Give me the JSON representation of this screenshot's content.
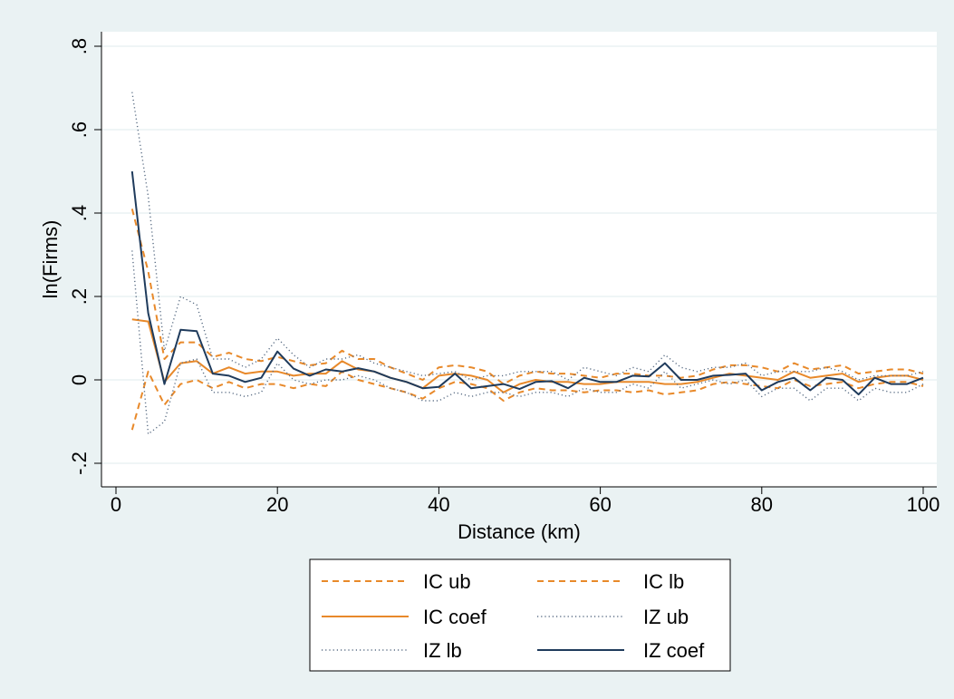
{
  "chart_data": {
    "type": "line",
    "xlabel": "Distance (km)",
    "ylabel": "ln(Firms)",
    "xlim": [
      0,
      100
    ],
    "ylim": [
      -0.2,
      0.8
    ],
    "xticks": [
      0,
      20,
      40,
      60,
      80,
      100
    ],
    "xtick_labels": [
      "0",
      "20",
      "40",
      "60",
      "80",
      "100"
    ],
    "yticks": [
      -0.2,
      0,
      0.2,
      0.4,
      0.6,
      0.8
    ],
    "ytick_labels": [
      "-.2",
      "0",
      ".2",
      ".4",
      ".6",
      ".8"
    ],
    "grid": "horizontal",
    "legend_position": "bottom",
    "x": [
      2,
      4,
      6,
      8,
      10,
      12,
      14,
      16,
      18,
      20,
      22,
      24,
      26,
      28,
      30,
      32,
      34,
      36,
      38,
      40,
      42,
      44,
      46,
      48,
      50,
      52,
      54,
      56,
      58,
      60,
      62,
      64,
      66,
      68,
      70,
      72,
      74,
      76,
      78,
      80,
      82,
      84,
      86,
      88,
      90,
      92,
      94,
      96,
      98,
      100
    ],
    "series": [
      {
        "name": "IC ub",
        "color": "#e8892a",
        "style": "dashed",
        "values": [
          0.41,
          0.26,
          0.05,
          0.09,
          0.09,
          0.055,
          0.065,
          0.05,
          0.045,
          0.055,
          0.045,
          0.035,
          0.04,
          0.07,
          0.05,
          0.05,
          0.03,
          0.015,
          0.0,
          0.03,
          0.035,
          0.03,
          0.02,
          -0.01,
          0.01,
          0.02,
          0.015,
          0.015,
          0.01,
          0.005,
          0.015,
          0.015,
          0.01,
          0.01,
          0.005,
          0.01,
          0.025,
          0.035,
          0.035,
          0.03,
          0.02,
          0.04,
          0.025,
          0.03,
          0.035,
          0.015,
          0.02,
          0.025,
          0.025,
          0.015
        ]
      },
      {
        "name": "IC lb",
        "color": "#e8892a",
        "style": "dashed",
        "values": [
          -0.12,
          0.02,
          -0.06,
          -0.01,
          0.0,
          -0.02,
          -0.005,
          -0.02,
          -0.01,
          -0.01,
          -0.02,
          -0.01,
          -0.015,
          0.02,
          0.0,
          -0.01,
          -0.02,
          -0.03,
          -0.045,
          -0.02,
          -0.005,
          -0.01,
          -0.02,
          -0.05,
          -0.03,
          -0.02,
          -0.025,
          -0.025,
          -0.03,
          -0.025,
          -0.025,
          -0.03,
          -0.025,
          -0.035,
          -0.03,
          -0.025,
          -0.01,
          -0.005,
          -0.01,
          -0.015,
          -0.02,
          0.0,
          -0.015,
          -0.01,
          -0.005,
          -0.02,
          -0.01,
          -0.005,
          -0.005,
          -0.015
        ]
      },
      {
        "name": "IC coef",
        "color": "#e8892a",
        "style": "solid",
        "values": [
          0.145,
          0.14,
          -0.005,
          0.04,
          0.045,
          0.015,
          0.03,
          0.015,
          0.02,
          0.02,
          0.01,
          0.015,
          0.015,
          0.045,
          0.025,
          0.02,
          0.005,
          -0.005,
          -0.02,
          0.01,
          0.015,
          0.01,
          0.0,
          -0.03,
          -0.01,
          0.0,
          -0.005,
          -0.005,
          -0.01,
          -0.01,
          -0.005,
          -0.005,
          -0.005,
          -0.01,
          -0.01,
          -0.005,
          0.005,
          0.015,
          0.01,
          0.005,
          0.0,
          0.02,
          0.005,
          0.01,
          0.015,
          -0.005,
          0.005,
          0.01,
          0.01,
          0.0
        ]
      },
      {
        "name": "IZ ub",
        "color": "#5b6e85",
        "style": "dotted",
        "values": [
          0.69,
          0.44,
          0.07,
          0.2,
          0.18,
          0.05,
          0.05,
          0.03,
          0.05,
          0.1,
          0.06,
          0.03,
          0.05,
          0.05,
          0.06,
          0.04,
          0.03,
          0.02,
          0.01,
          0.015,
          0.02,
          0.0,
          0.01,
          0.01,
          0.02,
          0.02,
          0.02,
          0.0,
          0.03,
          0.02,
          0.01,
          0.03,
          0.02,
          0.06,
          0.03,
          0.02,
          0.03,
          0.03,
          0.04,
          0.01,
          0.02,
          0.02,
          0.02,
          0.03,
          0.02,
          0.0,
          0.01,
          0.01,
          0.01,
          0.02
        ]
      },
      {
        "name": "IZ lb",
        "color": "#5b6e85",
        "style": "dotted",
        "values": [
          0.31,
          -0.13,
          -0.1,
          0.04,
          0.05,
          -0.03,
          -0.03,
          -0.04,
          -0.03,
          0.04,
          0.0,
          -0.01,
          0.0,
          0.0,
          0.01,
          0.0,
          -0.02,
          -0.03,
          -0.05,
          -0.05,
          -0.03,
          -0.04,
          -0.03,
          -0.03,
          -0.04,
          -0.03,
          -0.03,
          -0.04,
          -0.02,
          -0.03,
          -0.03,
          -0.01,
          -0.02,
          0.02,
          -0.02,
          -0.01,
          0.0,
          -0.01,
          0.0,
          -0.04,
          -0.02,
          -0.02,
          -0.05,
          -0.02,
          -0.02,
          -0.05,
          -0.02,
          -0.03,
          -0.03,
          -0.01
        ]
      },
      {
        "name": "IZ coef",
        "color": "#1f3b5c",
        "style": "solid",
        "values": [
          0.5,
          0.16,
          -0.01,
          0.12,
          0.117,
          0.015,
          0.01,
          -0.005,
          0.005,
          0.068,
          0.027,
          0.01,
          0.025,
          0.02,
          0.028,
          0.02,
          0.005,
          -0.005,
          -0.02,
          -0.017,
          0.015,
          -0.02,
          -0.015,
          -0.01,
          -0.022,
          -0.005,
          -0.003,
          -0.02,
          0.005,
          -0.005,
          -0.005,
          0.01,
          0.008,
          0.04,
          0.0,
          0.0,
          0.01,
          0.012,
          0.015,
          -0.025,
          -0.005,
          0.005,
          -0.025,
          0.005,
          0.0,
          -0.035,
          0.005,
          -0.01,
          -0.01,
          0.005
        ]
      }
    ]
  },
  "legend": {
    "items": [
      {
        "label": "IC ub",
        "series": 0
      },
      {
        "label": "IC lb",
        "series": 1
      },
      {
        "label": "IC coef",
        "series": 2
      },
      {
        "label": "IZ ub",
        "series": 3
      },
      {
        "label": "IZ lb",
        "series": 4
      },
      {
        "label": "IZ coef",
        "series": 5
      }
    ]
  },
  "colors": {
    "outer_background": "#eaf2f3",
    "plot_background": "#ffffff",
    "gridline": "#eaf2f3"
  }
}
